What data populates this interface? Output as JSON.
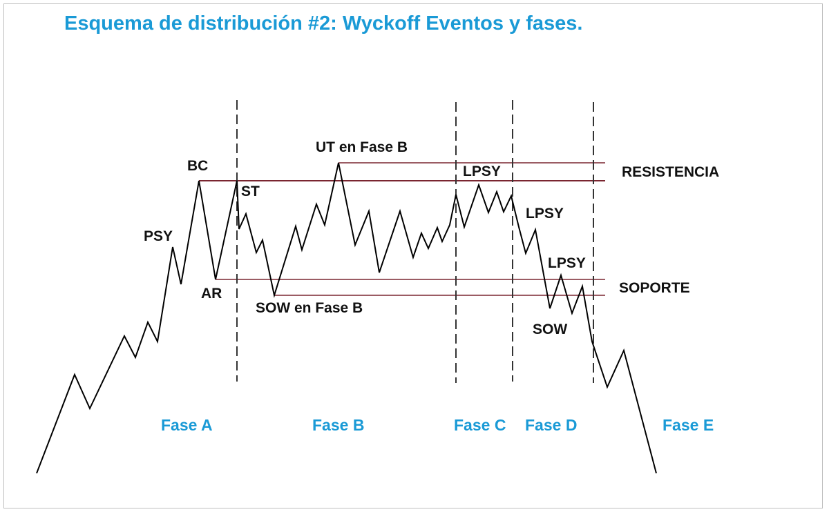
{
  "title": "Esquema de distribución #2: Wyckoff Eventos y fases.",
  "colors": {
    "accent": "#1a9ad6",
    "price_line": "#000000",
    "level_line": "#7a2630",
    "divider": "#333333"
  },
  "events": {
    "bc": "BC",
    "psy": "PSY",
    "ar": "AR",
    "st": "ST",
    "ut": "UT en Fase B",
    "sow_b": "SOW en Fase B",
    "lpsy_c": "LPSY",
    "lpsy_d1": "LPSY",
    "lpsy_d2": "LPSY",
    "sow": "SOW"
  },
  "levels": {
    "resistance": "RESISTENCIA",
    "support": "SOPORTE"
  },
  "phases": [
    "Fase A",
    "Fase B",
    "Fase C",
    "Fase D",
    "Fase E"
  ]
}
